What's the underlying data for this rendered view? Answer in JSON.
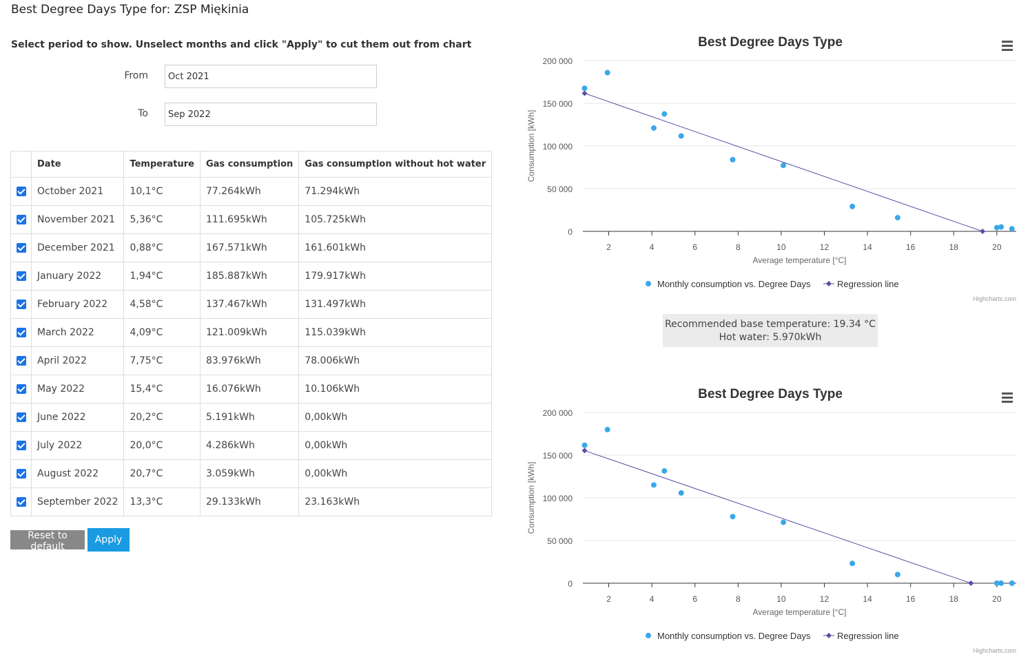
{
  "page": {
    "title": "Best Degree Days Type for: ZSP Miękinia",
    "instruction": "Select period to show. Unselect months and click \"Apply\" to cut them out from chart"
  },
  "period": {
    "from_label": "From",
    "from_value": "Oct 2021",
    "to_label": "To",
    "to_value": "Sep 2022"
  },
  "table": {
    "headers": [
      "Date",
      "Temperature",
      "Gas consumption",
      "Gas consumption without hot water"
    ],
    "rows": [
      {
        "checked": true,
        "date": "October 2021",
        "temperature": "10,1°C",
        "gas": "77.264kWh",
        "gas_no_hw": "71.294kWh"
      },
      {
        "checked": true,
        "date": "November 2021",
        "temperature": "5,36°C",
        "gas": "111.695kWh",
        "gas_no_hw": "105.725kWh"
      },
      {
        "checked": true,
        "date": "December 2021",
        "temperature": "0,88°C",
        "gas": "167.571kWh",
        "gas_no_hw": "161.601kWh"
      },
      {
        "checked": true,
        "date": "January 2022",
        "temperature": "1,94°C",
        "gas": "185.887kWh",
        "gas_no_hw": "179.917kWh"
      },
      {
        "checked": true,
        "date": "February 2022",
        "temperature": "4,58°C",
        "gas": "137.467kWh",
        "gas_no_hw": "131.497kWh"
      },
      {
        "checked": true,
        "date": "March 2022",
        "temperature": "4,09°C",
        "gas": "121.009kWh",
        "gas_no_hw": "115.039kWh"
      },
      {
        "checked": true,
        "date": "April 2022",
        "temperature": "7,75°C",
        "gas": "83.976kWh",
        "gas_no_hw": "78.006kWh"
      },
      {
        "checked": true,
        "date": "May 2022",
        "temperature": "15,4°C",
        "gas": "16.076kWh",
        "gas_no_hw": "10.106kWh"
      },
      {
        "checked": true,
        "date": "June 2022",
        "temperature": "20,2°C",
        "gas": "5.191kWh",
        "gas_no_hw": "0,00kWh"
      },
      {
        "checked": true,
        "date": "July 2022",
        "temperature": "20,0°C",
        "gas": "4.286kWh",
        "gas_no_hw": "0,00kWh"
      },
      {
        "checked": true,
        "date": "August 2022",
        "temperature": "20,7°C",
        "gas": "3.059kWh",
        "gas_no_hw": "0,00kWh"
      },
      {
        "checked": true,
        "date": "September 2022",
        "temperature": "13,3°C",
        "gas": "29.133kWh",
        "gas_no_hw": "23.163kWh"
      }
    ]
  },
  "buttons": {
    "reset": "Reset to default",
    "apply": "Apply"
  },
  "info": {
    "base_temperature": "Recommended base temperature: 19.34 °C",
    "hot_water": "Hot water: 5.970kWh"
  },
  "colors": {
    "scatter": "#3aa8ea",
    "regression": "#5a4ea8",
    "checkbox": "#1a73e8",
    "apply_button": "#1a9ae0",
    "reset_button": "#888888"
  },
  "chart_data": [
    {
      "type": "scatter",
      "title": "Best Degree Days Type",
      "xlabel": "Average temperature [°C]",
      "ylabel": "Consumption [kWh]",
      "xlim": [
        0.8,
        20.9
      ],
      "ylim": [
        0,
        200000
      ],
      "xticks": [
        2,
        4,
        6,
        8,
        10,
        12,
        14,
        16,
        18,
        20
      ],
      "yticks": [
        0,
        50000,
        100000,
        150000,
        200000
      ],
      "ytick_labels": [
        "0",
        "50 000",
        "100 000",
        "150 000",
        "200 000"
      ],
      "legend_position": "bottom",
      "credit": "Highcharts.com",
      "series": [
        {
          "name": "Monthly consumption vs. Degree Days",
          "kind": "scatter",
          "points": [
            [
              10.1,
              77264
            ],
            [
              5.36,
              111695
            ],
            [
              0.88,
              167571
            ],
            [
              1.94,
              185887
            ],
            [
              4.58,
              137467
            ],
            [
              4.09,
              121009
            ],
            [
              7.75,
              83976
            ],
            [
              15.4,
              16076
            ],
            [
              20.2,
              5191
            ],
            [
              20.0,
              4286
            ],
            [
              20.7,
              3059
            ],
            [
              13.3,
              29133
            ]
          ]
        },
        {
          "name": "Regression line",
          "kind": "line",
          "points": [
            [
              0.88,
              161700
            ],
            [
              19.34,
              0
            ]
          ]
        }
      ]
    },
    {
      "type": "scatter",
      "title": "Best Degree Days Type",
      "xlabel": "Average temperature [°C]",
      "ylabel": "Consumption [kWh]",
      "xlim": [
        0.8,
        20.9
      ],
      "ylim": [
        0,
        200000
      ],
      "xticks": [
        2,
        4,
        6,
        8,
        10,
        12,
        14,
        16,
        18,
        20
      ],
      "yticks": [
        0,
        50000,
        100000,
        150000,
        200000
      ],
      "ytick_labels": [
        "0",
        "50 000",
        "100 000",
        "150 000",
        "200 000"
      ],
      "legend_position": "bottom",
      "credit": "Highcharts.com",
      "series": [
        {
          "name": "Monthly consumption vs. Degree Days",
          "kind": "scatter",
          "points": [
            [
              10.1,
              71294
            ],
            [
              5.36,
              105725
            ],
            [
              0.88,
              161601
            ],
            [
              1.94,
              179917
            ],
            [
              4.58,
              131497
            ],
            [
              4.09,
              115039
            ],
            [
              7.75,
              78006
            ],
            [
              15.4,
              10106
            ],
            [
              20.2,
              0
            ],
            [
              20.0,
              0
            ],
            [
              20.7,
              0
            ],
            [
              13.3,
              23163
            ]
          ]
        },
        {
          "name": "Regression line",
          "kind": "line",
          "points": [
            [
              0.88,
              155300
            ],
            [
              18.8,
              0
            ]
          ]
        }
      ]
    }
  ]
}
